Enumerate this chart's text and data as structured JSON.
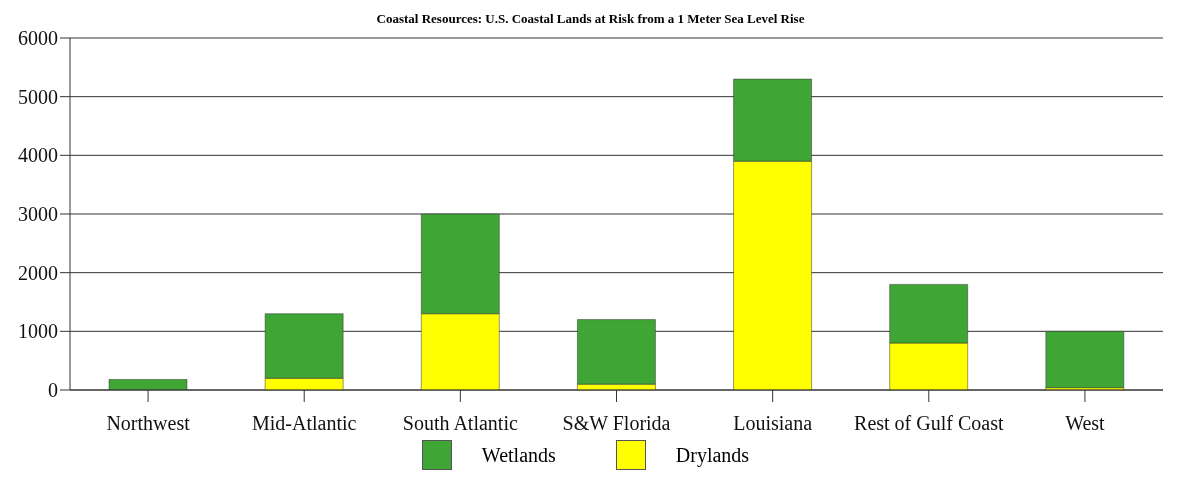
{
  "chart_data": {
    "type": "bar",
    "title": "Coastal Resources: U.S. Coastal Lands at Risk from a 1 Meter Sea Level Rise",
    "categories": [
      "Northwest",
      "Mid-Atlantic",
      "South Atlantic",
      "S&W Florida",
      "Louisiana",
      "Rest of Gulf Coast",
      "West"
    ],
    "series": [
      {
        "name": "Drylands",
        "color": "#ffff00",
        "values": [
          null,
          200,
          1300,
          100,
          3900,
          800,
          40
        ]
      },
      {
        "name": "Wetlands",
        "color": "#3fa535",
        "values": [
          180,
          1100,
          1700,
          1100,
          1400,
          1000,
          960
        ]
      }
    ],
    "stacked": true,
    "ylim": [
      0,
      6000
    ],
    "yticks": [
      0,
      1000,
      2000,
      3000,
      4000,
      5000,
      6000
    ],
    "grid": "y",
    "legend": "bottom"
  }
}
